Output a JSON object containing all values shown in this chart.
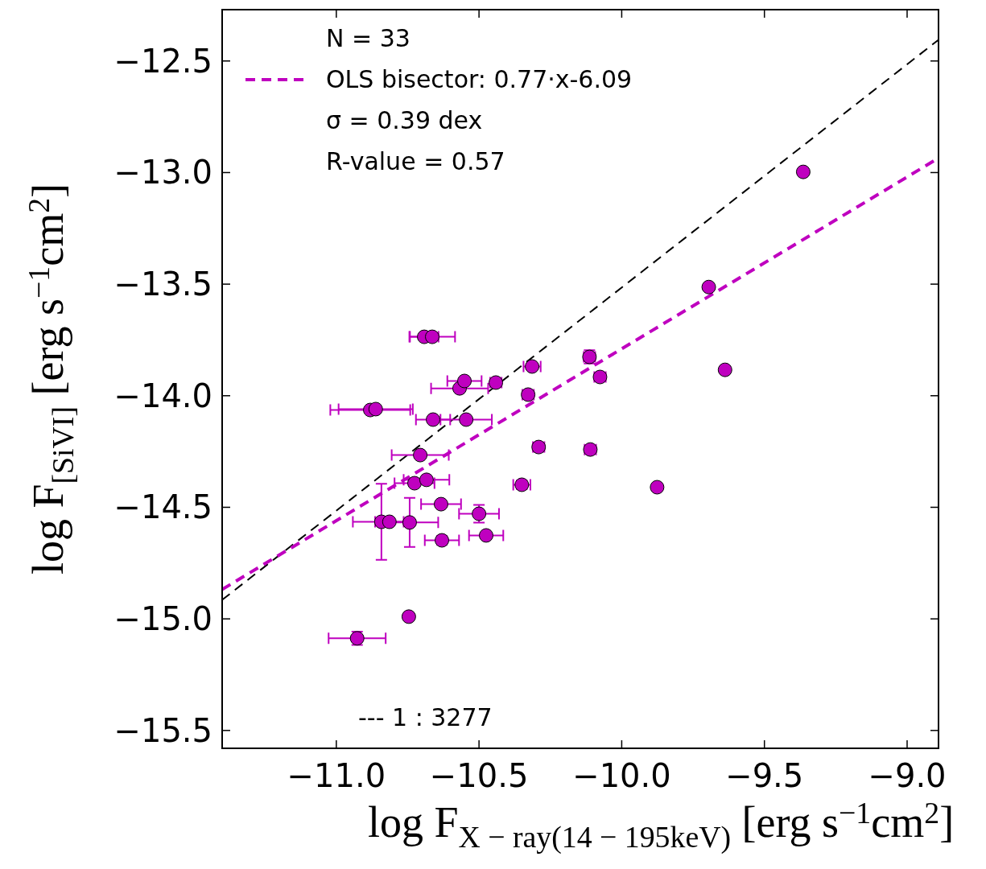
{
  "chart_data": {
    "type": "scatter",
    "xlabel": "log F$_{X − ray(14 − 195keV)}$  [erg s$^{−1}$cm$^{2}$]",
    "ylabel": "log F$_{[SiVI]}$  [erg s$^{−1}$cm$^{2}$]",
    "xlim": [
      -11.4,
      -8.89
    ],
    "ylim": [
      -15.58,
      -12.27
    ],
    "xticks": [
      {
        "value": -11.0,
        "label": "−11.0"
      },
      {
        "value": -10.5,
        "label": "−10.5"
      },
      {
        "value": -10.0,
        "label": "−10.0"
      },
      {
        "value": -9.5,
        "label": "−9.5"
      },
      {
        "value": -9.0,
        "label": "−9.0"
      }
    ],
    "yticks": [
      {
        "value": -15.5,
        "label": "−15.5"
      },
      {
        "value": -15.0,
        "label": "−15.0"
      },
      {
        "value": -14.5,
        "label": "−14.5"
      },
      {
        "value": -14.0,
        "label": "−14.0"
      },
      {
        "value": -13.5,
        "label": "−13.5"
      },
      {
        "value": -13.0,
        "label": "−13.0"
      },
      {
        "value": -12.5,
        "label": "−12.5"
      }
    ],
    "grid": false,
    "legend": "top left",
    "annotations": [
      "N = 33",
      "σ = 0.39 dex",
      "R-value = 0.57",
      "--- 1 : 3277"
    ],
    "series": [
      {
        "type": "line",
        "color": "#000000",
        "line_style": "dashed",
        "x": [
          -11.4,
          -8.89
        ],
        "values": [
          -14.915,
          -12.405
        ]
      },
      {
        "type": "line",
        "name": "OLS bisector: 0.77·x-6.09",
        "color": "#bf00bf",
        "line_style": "dashed",
        "x": [
          -11.4,
          -8.89
        ],
        "values": [
          -14.868,
          -12.935
        ]
      },
      {
        "type": "scatter",
        "color": "#bf00bf",
        "marker": "circle",
        "x": [
          -10.692,
          -10.664,
          -10.881,
          -10.862,
          -10.661,
          -10.545,
          -10.706,
          -10.726,
          -10.684,
          -10.842,
          -10.814,
          -10.743,
          -10.633,
          -10.5,
          -10.63,
          -10.475,
          -10.568,
          -10.551,
          -10.441,
          -10.314,
          -10.328,
          -10.291,
          -10.35,
          -10.113,
          -10.076,
          -10.11,
          -10.746,
          -10.927,
          -9.876,
          -9.638,
          -9.695,
          -9.364
        ],
        "values": [
          -13.736,
          -13.736,
          -14.064,
          -14.06,
          -14.107,
          -14.107,
          -14.266,
          -14.392,
          -14.377,
          -14.565,
          -14.565,
          -14.568,
          -14.486,
          -14.529,
          -14.648,
          -14.626,
          -13.967,
          -13.934,
          -13.941,
          -13.869,
          -13.995,
          -14.23,
          -14.399,
          -13.826,
          -13.916,
          -14.241,
          -14.99,
          -15.087,
          -14.41,
          -13.884,
          -13.513,
          -12.997
        ],
        "xerrors": [
          0.05,
          0.08,
          0.14,
          0.13,
          0.06,
          0.09,
          0.1,
          0.07,
          0.08,
          0.1,
          0.05,
          0.1,
          0.07,
          0.07,
          0.06,
          0.06,
          0.1,
          0.06,
          0.02,
          0.03,
          0.02,
          0.02,
          0.03,
          0.02,
          0.02,
          0.02,
          null,
          0.1,
          null,
          null,
          null,
          null
        ],
        "errors": [
          null,
          null,
          null,
          null,
          null,
          null,
          null,
          null,
          null,
          0.17,
          null,
          0.11,
          null,
          0.04,
          0.02,
          null,
          null,
          null,
          null,
          null,
          null,
          0.02,
          0.02,
          0.03,
          null,
          null,
          null,
          0.03,
          null,
          null,
          null,
          null
        ]
      }
    ]
  }
}
